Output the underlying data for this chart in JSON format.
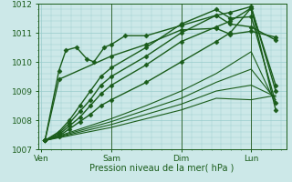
{
  "background_color": "#cce8e8",
  "grid_color": "#99cccc",
  "line_color": "#1a5c1a",
  "marker_color": "#1a5c1a",
  "x_ticks": [
    0,
    1,
    2,
    3
  ],
  "x_tick_labels": [
    "Ven",
    "Sam",
    "Dim",
    "Lun"
  ],
  "xlabel": "Pression niveau de la mer( hPa )",
  "ylim": [
    1007.0,
    1012.0
  ],
  "yticks": [
    1007,
    1008,
    1009,
    1010,
    1011,
    1012
  ],
  "xlim": [
    -0.05,
    3.5
  ],
  "series": [
    {
      "x": [
        0.05,
        0.25,
        0.4,
        0.55,
        0.7,
        0.85,
        1.0,
        1.5,
        2.0,
        2.5,
        2.7,
        3.0,
        3.35
      ],
      "y": [
        1007.3,
        1007.6,
        1008.0,
        1008.5,
        1009.0,
        1009.5,
        1009.8,
        1010.5,
        1011.3,
        1011.8,
        1011.5,
        1011.55,
        1008.6
      ],
      "marker": "D",
      "ms": 2.5,
      "lw": 1.0
    },
    {
      "x": [
        0.05,
        0.25,
        0.4,
        0.55,
        0.7,
        0.85,
        1.0,
        1.5,
        2.0,
        2.5,
        2.7,
        3.0,
        3.35
      ],
      "y": [
        1007.3,
        1007.55,
        1007.9,
        1008.3,
        1008.7,
        1009.2,
        1009.5,
        1010.2,
        1011.0,
        1011.6,
        1011.7,
        1011.9,
        1009.0
      ],
      "marker": "D",
      "ms": 2.5,
      "lw": 1.0
    },
    {
      "x": [
        0.05,
        0.25,
        0.4,
        0.55,
        0.7,
        0.85,
        1.0,
        1.5,
        2.0,
        2.5,
        2.7,
        3.0,
        3.35
      ],
      "y": [
        1007.3,
        1007.5,
        1007.8,
        1008.1,
        1008.5,
        1008.9,
        1009.2,
        1009.9,
        1010.7,
        1011.2,
        1011.4,
        1011.85,
        1009.2
      ],
      "marker": "D",
      "ms": 2.5,
      "lw": 1.0
    },
    {
      "x": [
        0.05,
        0.25,
        0.4,
        0.55,
        0.7,
        0.85,
        1.0,
        1.5,
        2.0,
        2.5,
        2.7,
        3.0,
        3.35
      ],
      "y": [
        1007.3,
        1007.45,
        1007.7,
        1007.95,
        1008.2,
        1008.5,
        1008.7,
        1009.3,
        1010.0,
        1010.7,
        1011.0,
        1011.85,
        1008.35
      ],
      "marker": "D",
      "ms": 2.5,
      "lw": 1.0
    },
    {
      "x": [
        0.05,
        0.25,
        1.0,
        1.5,
        2.0,
        2.5,
        2.7,
        3.0,
        3.35
      ],
      "y": [
        1007.3,
        1009.4,
        1010.2,
        1010.6,
        1011.1,
        1011.15,
        1010.95,
        1011.05,
        1010.85
      ],
      "marker": "D",
      "ms": 2.5,
      "lw": 1.0
    },
    {
      "x": [
        0.05,
        0.25,
        0.35,
        0.5,
        0.65,
        0.75,
        0.9,
        1.0,
        1.2,
        1.5,
        2.0,
        2.5,
        2.7,
        3.0,
        3.35
      ],
      "y": [
        1007.3,
        1009.7,
        1010.4,
        1010.5,
        1010.1,
        1010.0,
        1010.5,
        1010.6,
        1010.9,
        1010.9,
        1011.25,
        1011.6,
        1011.3,
        1011.2,
        1010.75
      ],
      "marker": "D",
      "ms": 2.5,
      "lw": 1.0
    },
    {
      "x": [
        0.05,
        1.0,
        1.5,
        2.0,
        2.5,
        3.0,
        3.35
      ],
      "y": [
        1007.3,
        1008.05,
        1008.5,
        1009.0,
        1009.6,
        1010.35,
        1008.55
      ],
      "marker": null,
      "ms": 0,
      "lw": 0.8
    },
    {
      "x": [
        0.05,
        1.0,
        1.5,
        2.0,
        2.5,
        3.0,
        3.35
      ],
      "y": [
        1007.3,
        1007.95,
        1008.35,
        1008.75,
        1009.3,
        1009.75,
        1008.7
      ],
      "marker": null,
      "ms": 0,
      "lw": 0.8
    },
    {
      "x": [
        0.05,
        1.0,
        1.5,
        2.0,
        2.5,
        3.0,
        3.35
      ],
      "y": [
        1007.3,
        1007.85,
        1008.2,
        1008.55,
        1009.0,
        1009.2,
        1008.8
      ],
      "marker": null,
      "ms": 0,
      "lw": 0.8
    },
    {
      "x": [
        0.05,
        1.0,
        1.5,
        2.0,
        2.5,
        3.0,
        3.35
      ],
      "y": [
        1007.3,
        1007.75,
        1008.05,
        1008.35,
        1008.75,
        1008.7,
        1008.85
      ],
      "marker": null,
      "ms": 0,
      "lw": 0.8
    }
  ],
  "vlines": [
    1.0,
    2.0,
    3.0
  ],
  "vline_color": "#336633",
  "vline_lw": 0.7
}
